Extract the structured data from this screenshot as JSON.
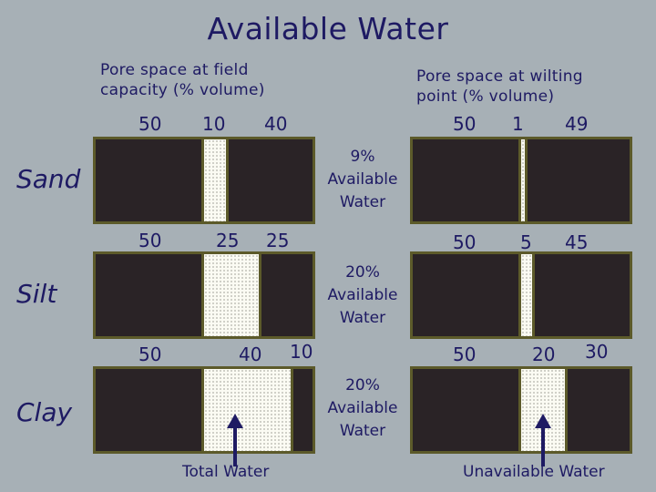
{
  "title": "Available Water",
  "headers": {
    "field_capacity": [
      "Pore space at field",
      "capacity (% volume)"
    ],
    "wilting_point": [
      "Pore space at wilting",
      "point (% volume)"
    ]
  },
  "soils": [
    {
      "name": "Sand",
      "field_capacity": {
        "solid": "50",
        "water": "10",
        "air": "40",
        "water_pct": 10
      },
      "wilting_point": {
        "solid": "50",
        "water": "1",
        "air": "49",
        "water_pct": 1
      },
      "available": [
        "9%",
        "Available",
        "Water"
      ]
    },
    {
      "name": "Silt",
      "field_capacity": {
        "solid": "50",
        "water": "25",
        "air": "25",
        "water_pct": 25
      },
      "wilting_point": {
        "solid": "50",
        "water": "5",
        "air": "45",
        "water_pct": 5
      },
      "available": [
        "20%",
        "Available",
        "Water"
      ]
    },
    {
      "name": "Clay",
      "field_capacity": {
        "solid": "50",
        "water": "40",
        "air": "10",
        "water_pct": 40
      },
      "wilting_point": {
        "solid": "50",
        "water": "20",
        "air": "30",
        "water_pct": 20
      },
      "available": [
        "20%",
        "Available",
        "Water"
      ]
    }
  ],
  "bottom_labels": {
    "left": "Total Water",
    "right": "Unavailable Water"
  },
  "colors": {
    "background": "#a7b0b6",
    "text": "#1e1a63",
    "bar": "#2a2326",
    "border": "#5c5a2a",
    "water": "#fbfbf3"
  }
}
